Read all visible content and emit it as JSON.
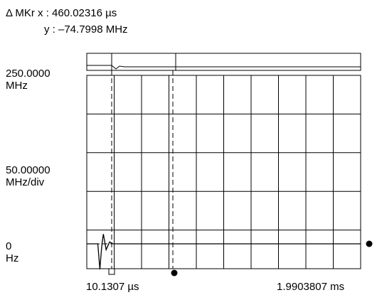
{
  "marker_readout": {
    "delta_x_label": "Δ MKr x : 460.02316 µs",
    "delta_y_label": "y : –74.7998 MHz"
  },
  "chart_data": {
    "type": "line",
    "title": "",
    "xlabel": "",
    "ylabel": "",
    "grid": true,
    "x_start_label": "10.1307 µs",
    "x_end_label": "1.9903807 ms",
    "y_top_label": [
      "250.0000",
      "MHz"
    ],
    "y_scale_label": [
      "50.00000",
      "MHz/div"
    ],
    "y_zero_label": [
      "0",
      "Hz"
    ],
    "x_divisions": 10,
    "y_divisions": 5,
    "ylim": [
      0,
      250
    ],
    "y_units": "MHz",
    "series": [
      {
        "values_description": "frequency vs time",
        "x_us": [
          10.1307,
          90,
          105,
          115,
          120,
          130,
          150,
          175,
          200,
          250,
          400,
          1000,
          1990.3807
        ],
        "y_mhz": [
          0,
          0,
          -65,
          -20,
          0,
          25,
          -15,
          5,
          0,
          0,
          0,
          0,
          0
        ]
      }
    ],
    "markers": {
      "reference_x_us": 90,
      "delta_x_us": 460.02316,
      "delta_y_mhz": -74.7998
    }
  }
}
